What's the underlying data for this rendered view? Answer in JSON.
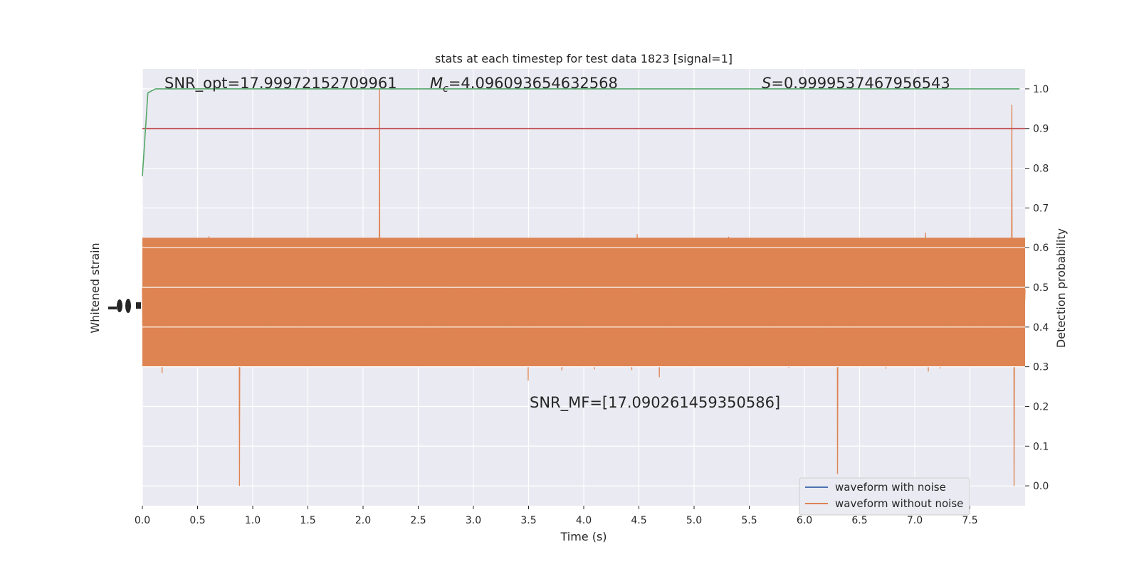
{
  "chart_data": {
    "type": "line",
    "title": "stats at each timestep for test data 1823 [signal=1]",
    "xlabel": "Time (s)",
    "ylabel_left": "Whitened strain",
    "ylabel_right": "Detection probability",
    "xlim": [
      0.0,
      8.0
    ],
    "ylim_right": [
      -0.05,
      1.05
    ],
    "x_ticks": [
      "0.0",
      "0.5",
      "1.0",
      "1.5",
      "2.0",
      "2.5",
      "3.0",
      "3.5",
      "4.0",
      "4.5",
      "5.0",
      "5.5",
      "6.0",
      "6.5",
      "7.0",
      "7.5"
    ],
    "x_tick_values": [
      0.0,
      0.5,
      1.0,
      1.5,
      2.0,
      2.5,
      3.0,
      3.5,
      4.0,
      4.5,
      5.0,
      5.5,
      6.0,
      6.5,
      7.0,
      7.5
    ],
    "y_right_ticks": [
      "0.0",
      "0.1",
      "0.2",
      "0.3",
      "0.4",
      "0.5",
      "0.6",
      "0.7",
      "0.8",
      "0.9",
      "1.0"
    ],
    "y_right_tick_values": [
      0.0,
      0.1,
      0.2,
      0.3,
      0.4,
      0.5,
      0.6,
      0.7,
      0.8,
      0.9,
      1.0
    ],
    "grid": true,
    "legend_position": "lower-right",
    "annotations": {
      "snr_opt": "SNR_opt=17.99972152709961",
      "mc_symbol": "M",
      "mc_sub": "c",
      "mc_value": "=4.096093654632568",
      "s_symbol": "S",
      "s_value": "=0.9999537467956543",
      "snr_mf": "SNR_MF=[17.090261459350586]"
    },
    "series": [
      {
        "name": "waveform with noise",
        "color": "#4c72b0",
        "style": "dense-noise"
      },
      {
        "name": "waveform without noise",
        "color": "#dd8452",
        "style": "dense-noise",
        "center": 0.45,
        "typical_amplitude": 0.15,
        "peaks": [
          [
            0.88,
            0.0
          ],
          [
            2.15,
            1.0
          ],
          [
            6.3,
            0.03
          ],
          [
            7.88,
            0.96
          ],
          [
            7.9,
            0.0
          ]
        ]
      },
      {
        "name": "detection probability",
        "color": "#55a868",
        "x": [
          0.0,
          0.05,
          0.12,
          7.95
        ],
        "y": [
          0.78,
          0.99,
          1.0,
          1.0
        ]
      },
      {
        "name": "threshold",
        "color": "#c44e52",
        "x": [
          0.0,
          8.0
        ],
        "y": [
          0.9,
          0.9
        ]
      }
    ]
  }
}
